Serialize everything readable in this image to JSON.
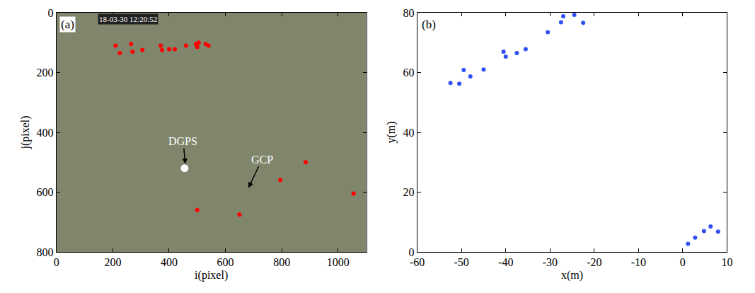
{
  "chart_data": [
    {
      "type": "scatter",
      "label": "(a)",
      "xlabel": "i(pixel)",
      "ylabel": "j(pixel)",
      "xlim": [
        0,
        1100
      ],
      "xticks": [
        0,
        200,
        400,
        600,
        800,
        1000
      ],
      "ylim": [
        800,
        0
      ],
      "yticks": [
        0,
        200,
        400,
        600,
        800
      ],
      "series": [
        {
          "color": "#ff0000",
          "marker": "circle",
          "x": [
            210,
            225,
            265,
            270,
            305,
            370,
            375,
            400,
            420,
            460,
            495,
            505,
            500,
            530,
            540,
            500,
            650,
            795,
            885,
            1055
          ],
          "values": [
            110,
            135,
            105,
            130,
            125,
            110,
            125,
            122,
            122,
            110,
            105,
            100,
            115,
            105,
            110,
            660,
            675,
            560,
            500,
            605
          ]
        },
        {
          "color": "#ffffff",
          "marker": "circle",
          "x": [
            455
          ],
          "values": [
            520
          ]
        }
      ],
      "annotations": [
        {
          "text": "18-03-30 12:20:52",
          "x": 255,
          "y": 22
        },
        {
          "text": "DGPS",
          "x": 450,
          "y": 430,
          "arrow_x": 458,
          "arrow_y": 510
        },
        {
          "text": "GCP",
          "x": 730,
          "y": 490,
          "arrow_x": 680,
          "arrow_y": 590
        }
      ]
    },
    {
      "type": "scatter",
      "label": "(b)",
      "xlabel": "x(m)",
      "ylabel": "y(m)",
      "xlim": [
        -60,
        10
      ],
      "xticks": [
        -60,
        -50,
        -40,
        -30,
        -20,
        -10,
        0,
        10
      ],
      "ylim": [
        0,
        80
      ],
      "yticks": [
        0,
        20,
        40,
        60,
        80
      ],
      "series": [
        {
          "color": "#3050f0",
          "marker": "circle",
          "x": [
            -52.5,
            -50.5,
            -49.5,
            -48,
            -45,
            -40.5,
            -40,
            -37.5,
            -35.5,
            -30.5,
            -27.5,
            -27,
            -24.5,
            -22.5,
            1.2,
            2.8,
            4.8,
            6.3,
            8
          ],
          "values": [
            56.5,
            56.3,
            60.8,
            58.7,
            61,
            67,
            65.3,
            66.5,
            67.8,
            73.5,
            76.8,
            78.8,
            79.3,
            76.6,
            2.7,
            4.8,
            7,
            8.5,
            6.8
          ]
        }
      ]
    }
  ]
}
